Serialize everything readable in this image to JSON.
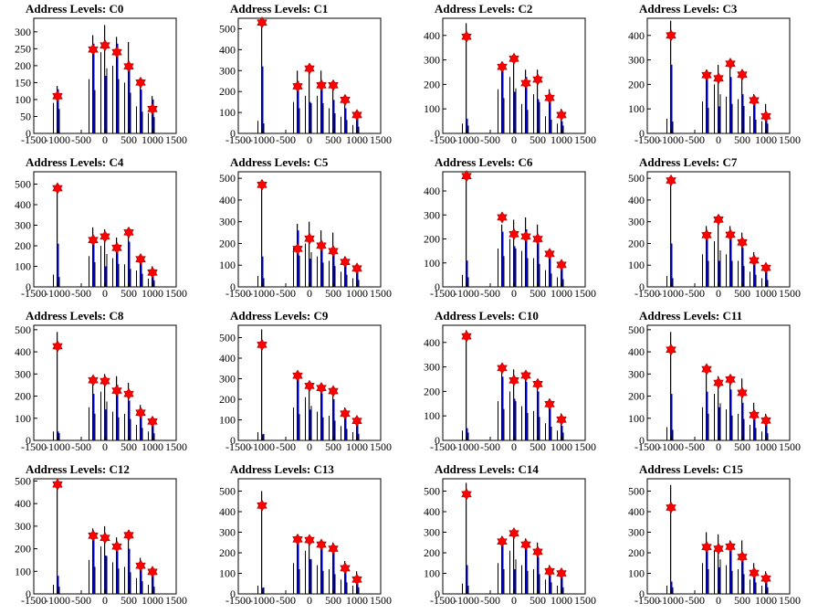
{
  "colors": {
    "hist_line": "#000000",
    "fill": "#0000cc",
    "marker": "#ff0000",
    "axis": "#000000"
  },
  "xticks": [
    -1500,
    -1000,
    -500,
    0,
    500,
    1000,
    1500
  ],
  "xlim": [
    -1500,
    1500
  ],
  "chart_data": [
    {
      "type": "bar",
      "title": "Address Levels: C0",
      "ylim": [
        0,
        340
      ],
      "yticks": [
        0,
        50,
        100,
        150,
        200,
        250,
        300
      ],
      "peaks": [
        {
          "x": -1000,
          "top": 140,
          "marker": 110,
          "blue": 130,
          "side": 90
        },
        {
          "x": -250,
          "top": 290,
          "marker": 248,
          "blue": 265,
          "side": 160
        },
        {
          "x": 0,
          "top": 320,
          "marker": 260,
          "blue": 170,
          "side": 240
        },
        {
          "x": 250,
          "top": 285,
          "marker": 240,
          "blue": 265,
          "side": 200
        },
        {
          "x": 500,
          "top": 270,
          "marker": 198,
          "blue": 205,
          "side": 150
        },
        {
          "x": 750,
          "top": 140,
          "marker": 150,
          "blue": 130,
          "side": 80
        },
        {
          "x": 1000,
          "top": 110,
          "marker": 72,
          "blue": 100,
          "side": 60
        }
      ]
    },
    {
      "type": "bar",
      "title": "Address Levels: C1",
      "ylim": [
        0,
        550
      ],
      "yticks": [
        0,
        100,
        200,
        300,
        400,
        500
      ],
      "peaks": [
        {
          "x": -1000,
          "top": 540,
          "marker": 530,
          "blue": 320,
          "side": 60
        },
        {
          "x": -250,
          "top": 300,
          "marker": 225,
          "blue": 250,
          "side": 150
        },
        {
          "x": 0,
          "top": 320,
          "marker": 310,
          "blue": 150,
          "side": 180
        },
        {
          "x": 250,
          "top": 300,
          "marker": 230,
          "blue": 230,
          "side": 180
        },
        {
          "x": 500,
          "top": 230,
          "marker": 230,
          "blue": 160,
          "side": 120
        },
        {
          "x": 750,
          "top": 170,
          "marker": 160,
          "blue": 120,
          "side": 80
        },
        {
          "x": 1000,
          "top": 90,
          "marker": 88,
          "blue": 80,
          "side": 40
        }
      ]
    },
    {
      "type": "bar",
      "title": "Address Levels: C2",
      "ylim": [
        0,
        470
      ],
      "yticks": [
        0,
        100,
        200,
        300,
        400
      ],
      "peaks": [
        {
          "x": -1000,
          "top": 450,
          "marker": 395,
          "blue": 60,
          "side": 40
        },
        {
          "x": -250,
          "top": 280,
          "marker": 272,
          "blue": 260,
          "side": 180
        },
        {
          "x": 0,
          "top": 320,
          "marker": 305,
          "blue": 170,
          "side": 230
        },
        {
          "x": 250,
          "top": 260,
          "marker": 205,
          "blue": 230,
          "side": 120
        },
        {
          "x": 500,
          "top": 260,
          "marker": 220,
          "blue": 140,
          "side": 160
        },
        {
          "x": 750,
          "top": 180,
          "marker": 145,
          "blue": 160,
          "side": 70
        },
        {
          "x": 1000,
          "top": 100,
          "marker": 75,
          "blue": 50,
          "side": 40
        }
      ]
    },
    {
      "type": "bar",
      "title": "Address Levels: C3",
      "ylim": [
        0,
        470
      ],
      "yticks": [
        0,
        100,
        200,
        300,
        400
      ],
      "peaks": [
        {
          "x": -1000,
          "top": 460,
          "marker": 400,
          "blue": 280,
          "side": 60
        },
        {
          "x": -250,
          "top": 260,
          "marker": 238,
          "blue": 250,
          "side": 130
        },
        {
          "x": 0,
          "top": 280,
          "marker": 225,
          "blue": 110,
          "side": 200
        },
        {
          "x": 250,
          "top": 300,
          "marker": 285,
          "blue": 230,
          "side": 150
        },
        {
          "x": 500,
          "top": 260,
          "marker": 240,
          "blue": 160,
          "side": 140
        },
        {
          "x": 750,
          "top": 160,
          "marker": 135,
          "blue": 140,
          "side": 70
        },
        {
          "x": 1000,
          "top": 120,
          "marker": 70,
          "blue": 80,
          "side": 50
        }
      ]
    },
    {
      "type": "bar",
      "title": "Address Levels: C4",
      "ylim": [
        0,
        560
      ],
      "yticks": [
        0,
        100,
        200,
        300,
        400,
        500
      ],
      "peaks": [
        {
          "x": -1000,
          "top": 500,
          "marker": 480,
          "blue": 210,
          "side": 60
        },
        {
          "x": -250,
          "top": 290,
          "marker": 228,
          "blue": 250,
          "side": 150
        },
        {
          "x": 0,
          "top": 280,
          "marker": 245,
          "blue": 100,
          "side": 200
        },
        {
          "x": 250,
          "top": 240,
          "marker": 190,
          "blue": 180,
          "side": 140
        },
        {
          "x": 500,
          "top": 250,
          "marker": 265,
          "blue": 220,
          "side": 110
        },
        {
          "x": 750,
          "top": 150,
          "marker": 135,
          "blue": 130,
          "side": 80
        },
        {
          "x": 1000,
          "top": 100,
          "marker": 70,
          "blue": 80,
          "side": 40
        }
      ]
    },
    {
      "type": "bar",
      "title": "Address Levels: C5",
      "ylim": [
        0,
        530
      ],
      "yticks": [
        0,
        100,
        200,
        300,
        400,
        500
      ],
      "peaks": [
        {
          "x": -1000,
          "top": 490,
          "marker": 470,
          "blue": 140,
          "side": 50
        },
        {
          "x": -250,
          "top": 290,
          "marker": 175,
          "blue": 260,
          "side": 180
        },
        {
          "x": 0,
          "top": 300,
          "marker": 222,
          "blue": 130,
          "side": 200
        },
        {
          "x": 250,
          "top": 260,
          "marker": 190,
          "blue": 210,
          "side": 140
        },
        {
          "x": 500,
          "top": 250,
          "marker": 165,
          "blue": 180,
          "side": 120
        },
        {
          "x": 750,
          "top": 140,
          "marker": 115,
          "blue": 120,
          "side": 70
        },
        {
          "x": 1000,
          "top": 100,
          "marker": 85,
          "blue": 80,
          "side": 40
        }
      ]
    },
    {
      "type": "bar",
      "title": "Address Levels: C6",
      "ylim": [
        0,
        480
      ],
      "yticks": [
        0,
        100,
        200,
        300,
        400
      ],
      "peaks": [
        {
          "x": -1000,
          "top": 460,
          "marker": 462,
          "blue": 110,
          "side": 50
        },
        {
          "x": -250,
          "top": 260,
          "marker": 290,
          "blue": 230,
          "side": 160
        },
        {
          "x": 0,
          "top": 280,
          "marker": 220,
          "blue": 170,
          "side": 200
        },
        {
          "x": 250,
          "top": 290,
          "marker": 210,
          "blue": 240,
          "side": 150
        },
        {
          "x": 500,
          "top": 260,
          "marker": 200,
          "blue": 200,
          "side": 120
        },
        {
          "x": 750,
          "top": 150,
          "marker": 138,
          "blue": 130,
          "side": 70
        },
        {
          "x": 1000,
          "top": 110,
          "marker": 92,
          "blue": 90,
          "side": 40
        }
      ]
    },
    {
      "type": "bar",
      "title": "Address Levels: C7",
      "ylim": [
        0,
        530
      ],
      "yticks": [
        0,
        100,
        200,
        300,
        400,
        500
      ],
      "peaks": [
        {
          "x": -1000,
          "top": 510,
          "marker": 490,
          "blue": 200,
          "side": 50
        },
        {
          "x": -250,
          "top": 280,
          "marker": 238,
          "blue": 240,
          "side": 150
        },
        {
          "x": 0,
          "top": 300,
          "marker": 310,
          "blue": 120,
          "side": 210
        },
        {
          "x": 250,
          "top": 280,
          "marker": 240,
          "blue": 220,
          "side": 150
        },
        {
          "x": 500,
          "top": 250,
          "marker": 205,
          "blue": 180,
          "side": 120
        },
        {
          "x": 750,
          "top": 160,
          "marker": 122,
          "blue": 120,
          "side": 70
        },
        {
          "x": 1000,
          "top": 110,
          "marker": 88,
          "blue": 80,
          "side": 40
        }
      ]
    },
    {
      "type": "bar",
      "title": "Address Levels: C8",
      "ylim": [
        0,
        520
      ],
      "yticks": [
        0,
        100,
        200,
        300,
        400,
        500
      ],
      "peaks": [
        {
          "x": -1000,
          "top": 490,
          "marker": 425,
          "blue": 40,
          "side": 40
        },
        {
          "x": -250,
          "top": 290,
          "marker": 272,
          "blue": 210,
          "side": 150
        },
        {
          "x": 0,
          "top": 300,
          "marker": 268,
          "blue": 140,
          "side": 220
        },
        {
          "x": 250,
          "top": 290,
          "marker": 225,
          "blue": 250,
          "side": 130
        },
        {
          "x": 500,
          "top": 260,
          "marker": 210,
          "blue": 180,
          "side": 120
        },
        {
          "x": 750,
          "top": 160,
          "marker": 125,
          "blue": 130,
          "side": 70
        },
        {
          "x": 1000,
          "top": 100,
          "marker": 85,
          "blue": 80,
          "side": 40
        }
      ]
    },
    {
      "type": "bar",
      "title": "Address Levels: C9",
      "ylim": [
        0,
        560
      ],
      "yticks": [
        0,
        100,
        200,
        300,
        400,
        500
      ],
      "peaks": [
        {
          "x": -1000,
          "top": 540,
          "marker": 465,
          "blue": 30,
          "side": 40
        },
        {
          "x": -250,
          "top": 310,
          "marker": 315,
          "blue": 300,
          "side": 160
        },
        {
          "x": 0,
          "top": 290,
          "marker": 265,
          "blue": 150,
          "side": 210
        },
        {
          "x": 250,
          "top": 260,
          "marker": 255,
          "blue": 230,
          "side": 140
        },
        {
          "x": 500,
          "top": 260,
          "marker": 240,
          "blue": 200,
          "side": 120
        },
        {
          "x": 750,
          "top": 160,
          "marker": 130,
          "blue": 130,
          "side": 70
        },
        {
          "x": 1000,
          "top": 110,
          "marker": 95,
          "blue": 80,
          "side": 40
        }
      ]
    },
    {
      "type": "bar",
      "title": "Address Levels: C10",
      "ylim": [
        0,
        470
      ],
      "yticks": [
        0,
        100,
        200,
        300,
        400
      ],
      "peaks": [
        {
          "x": -1000,
          "top": 450,
          "marker": 425,
          "blue": 50,
          "side": 40
        },
        {
          "x": -250,
          "top": 280,
          "marker": 295,
          "blue": 260,
          "side": 160
        },
        {
          "x": 0,
          "top": 290,
          "marker": 245,
          "blue": 170,
          "side": 200
        },
        {
          "x": 250,
          "top": 260,
          "marker": 265,
          "blue": 240,
          "side": 140
        },
        {
          "x": 500,
          "top": 250,
          "marker": 230,
          "blue": 200,
          "side": 120
        },
        {
          "x": 750,
          "top": 170,
          "marker": 148,
          "blue": 140,
          "side": 70
        },
        {
          "x": 1000,
          "top": 110,
          "marker": 85,
          "blue": 60,
          "side": 40
        }
      ]
    },
    {
      "type": "bar",
      "title": "Address Levels: C11",
      "ylim": [
        0,
        520
      ],
      "yticks": [
        0,
        100,
        200,
        300,
        400,
        500
      ],
      "peaks": [
        {
          "x": -1000,
          "top": 490,
          "marker": 410,
          "blue": 210,
          "side": 60
        },
        {
          "x": -250,
          "top": 300,
          "marker": 322,
          "blue": 220,
          "side": 150
        },
        {
          "x": 0,
          "top": 290,
          "marker": 260,
          "blue": 150,
          "side": 210
        },
        {
          "x": 250,
          "top": 280,
          "marker": 275,
          "blue": 230,
          "side": 140
        },
        {
          "x": 500,
          "top": 280,
          "marker": 215,
          "blue": 170,
          "side": 120
        },
        {
          "x": 750,
          "top": 170,
          "marker": 115,
          "blue": 120,
          "side": 70
        },
        {
          "x": 1000,
          "top": 120,
          "marker": 90,
          "blue": 80,
          "side": 40
        }
      ]
    },
    {
      "type": "bar",
      "title": "Address Levels: C12",
      "ylim": [
        0,
        510
      ],
      "yticks": [
        0,
        100,
        200,
        300,
        400,
        500
      ],
      "peaks": [
        {
          "x": -1000,
          "top": 500,
          "marker": 485,
          "blue": 80,
          "side": 40
        },
        {
          "x": -250,
          "top": 290,
          "marker": 258,
          "blue": 240,
          "side": 150
        },
        {
          "x": 0,
          "top": 300,
          "marker": 248,
          "blue": 170,
          "side": 210
        },
        {
          "x": 250,
          "top": 250,
          "marker": 210,
          "blue": 190,
          "side": 140
        },
        {
          "x": 500,
          "top": 250,
          "marker": 260,
          "blue": 200,
          "side": 120
        },
        {
          "x": 750,
          "top": 160,
          "marker": 125,
          "blue": 130,
          "side": 70
        },
        {
          "x": 1000,
          "top": 120,
          "marker": 98,
          "blue": 80,
          "side": 40
        }
      ]
    },
    {
      "type": "bar",
      "title": "Address Levels: C13",
      "ylim": [
        0,
        560
      ],
      "yticks": [
        0,
        100,
        200,
        300,
        400,
        500
      ],
      "peaks": [
        {
          "x": -1000,
          "top": 500,
          "marker": 430,
          "blue": 30,
          "side": 40
        },
        {
          "x": -250,
          "top": 280,
          "marker": 265,
          "blue": 250,
          "side": 150
        },
        {
          "x": 0,
          "top": 280,
          "marker": 262,
          "blue": 170,
          "side": 210
        },
        {
          "x": 250,
          "top": 250,
          "marker": 240,
          "blue": 230,
          "side": 140
        },
        {
          "x": 500,
          "top": 250,
          "marker": 220,
          "blue": 200,
          "side": 120
        },
        {
          "x": 750,
          "top": 160,
          "marker": 125,
          "blue": 120,
          "side": 70
        },
        {
          "x": 1000,
          "top": 110,
          "marker": 70,
          "blue": 70,
          "side": 40
        }
      ]
    },
    {
      "type": "bar",
      "title": "Address Levels: C14",
      "ylim": [
        0,
        560
      ],
      "yticks": [
        0,
        100,
        200,
        300,
        400,
        500
      ],
      "peaks": [
        {
          "x": -1000,
          "top": 540,
          "marker": 485,
          "blue": 140,
          "side": 50
        },
        {
          "x": -250,
          "top": 280,
          "marker": 255,
          "blue": 240,
          "side": 150
        },
        {
          "x": 0,
          "top": 310,
          "marker": 295,
          "blue": 120,
          "side": 210
        },
        {
          "x": 250,
          "top": 270,
          "marker": 240,
          "blue": 230,
          "side": 140
        },
        {
          "x": 500,
          "top": 250,
          "marker": 205,
          "blue": 180,
          "side": 120
        },
        {
          "x": 750,
          "top": 140,
          "marker": 110,
          "blue": 120,
          "side": 70
        },
        {
          "x": 1000,
          "top": 110,
          "marker": 100,
          "blue": 80,
          "side": 40
        }
      ]
    },
    {
      "type": "bar",
      "title": "Address Levels: C15",
      "ylim": [
        0,
        560
      ],
      "yticks": [
        0,
        100,
        200,
        300,
        400,
        500
      ],
      "peaks": [
        {
          "x": -1000,
          "top": 530,
          "marker": 420,
          "blue": 60,
          "side": 40
        },
        {
          "x": -250,
          "top": 300,
          "marker": 228,
          "blue": 250,
          "side": 150
        },
        {
          "x": 0,
          "top": 290,
          "marker": 220,
          "blue": 130,
          "side": 210
        },
        {
          "x": 250,
          "top": 260,
          "marker": 230,
          "blue": 230,
          "side": 140
        },
        {
          "x": 500,
          "top": 260,
          "marker": 180,
          "blue": 170,
          "side": 120
        },
        {
          "x": 750,
          "top": 150,
          "marker": 102,
          "blue": 110,
          "side": 70
        },
        {
          "x": 1000,
          "top": 110,
          "marker": 75,
          "blue": 70,
          "side": 40
        }
      ]
    }
  ]
}
